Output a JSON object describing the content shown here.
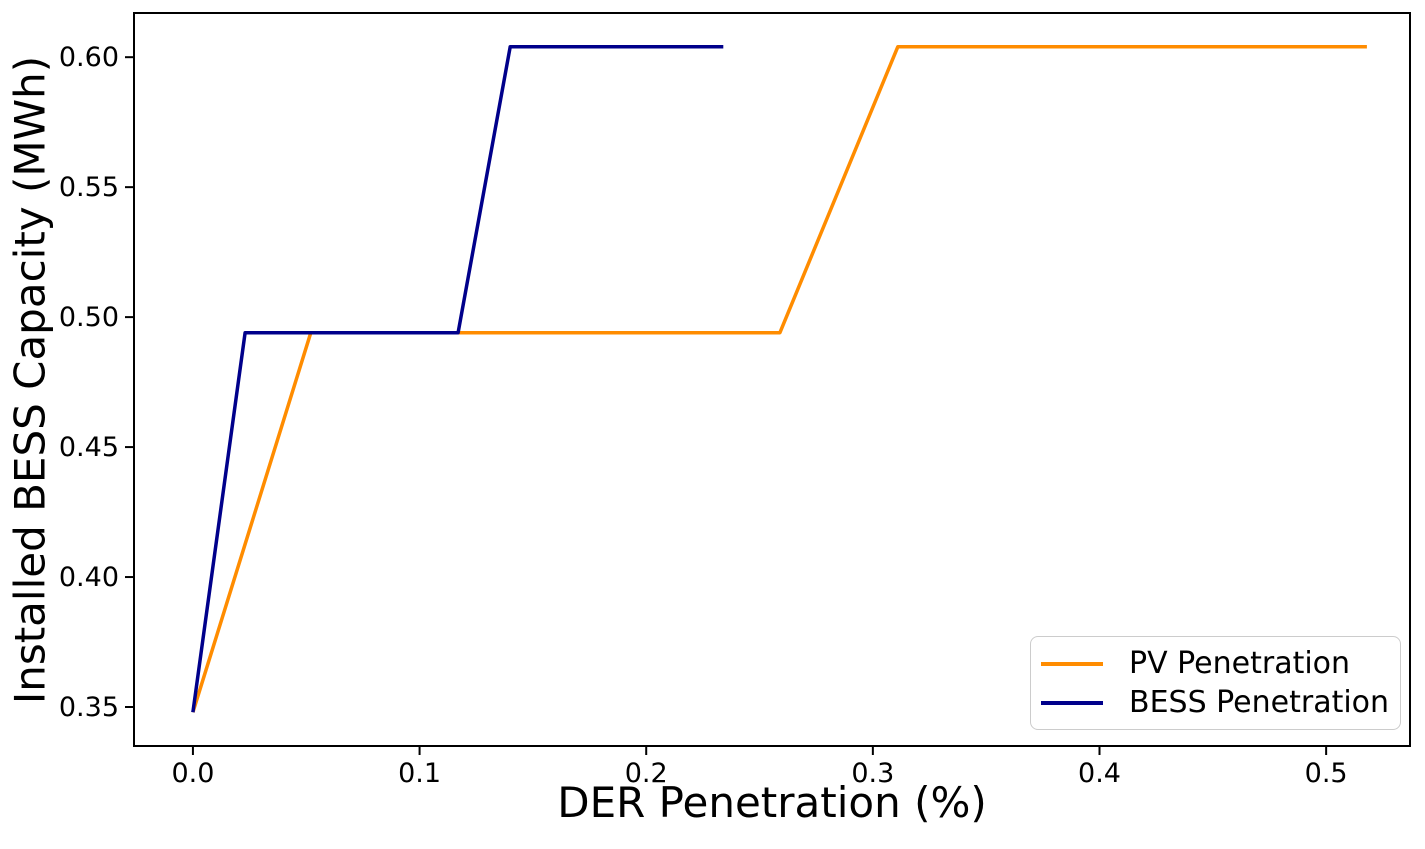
{
  "figure": {
    "background": "#ffffff",
    "frame_color": "#000000",
    "tick_color": "#000000",
    "text_color": "#000000"
  },
  "chart_data": {
    "type": "line",
    "title": "",
    "xlabel": "DER Penetration (%)",
    "ylabel": "Installed BESS Capacity (MWh)",
    "xlim": [
      -0.026,
      0.537
    ],
    "ylim": [
      0.335,
      0.617
    ],
    "xticks": [
      0.0,
      0.1,
      0.2,
      0.3,
      0.4,
      0.5
    ],
    "xtick_labels": [
      "0.0",
      "0.1",
      "0.2",
      "0.3",
      "0.4",
      "0.5"
    ],
    "yticks": [
      0.35,
      0.4,
      0.45,
      0.5,
      0.55,
      0.6
    ],
    "ytick_labels": [
      "0.35",
      "0.40",
      "0.45",
      "0.50",
      "0.55",
      "0.60"
    ],
    "grid": false,
    "legend": {
      "position": "lower right"
    },
    "series": [
      {
        "name": "PV Penetration",
        "color": "#FF8C00",
        "x": [
          0.0,
          0.052,
          0.259,
          0.311,
          0.518
        ],
        "y": [
          0.348,
          0.494,
          0.494,
          0.604,
          0.604
        ]
      },
      {
        "name": "BESS Penetration",
        "color": "#00008B",
        "x": [
          0.0,
          0.023,
          0.117,
          0.14,
          0.234
        ],
        "y": [
          0.348,
          0.494,
          0.494,
          0.604,
          0.604
        ]
      }
    ]
  }
}
